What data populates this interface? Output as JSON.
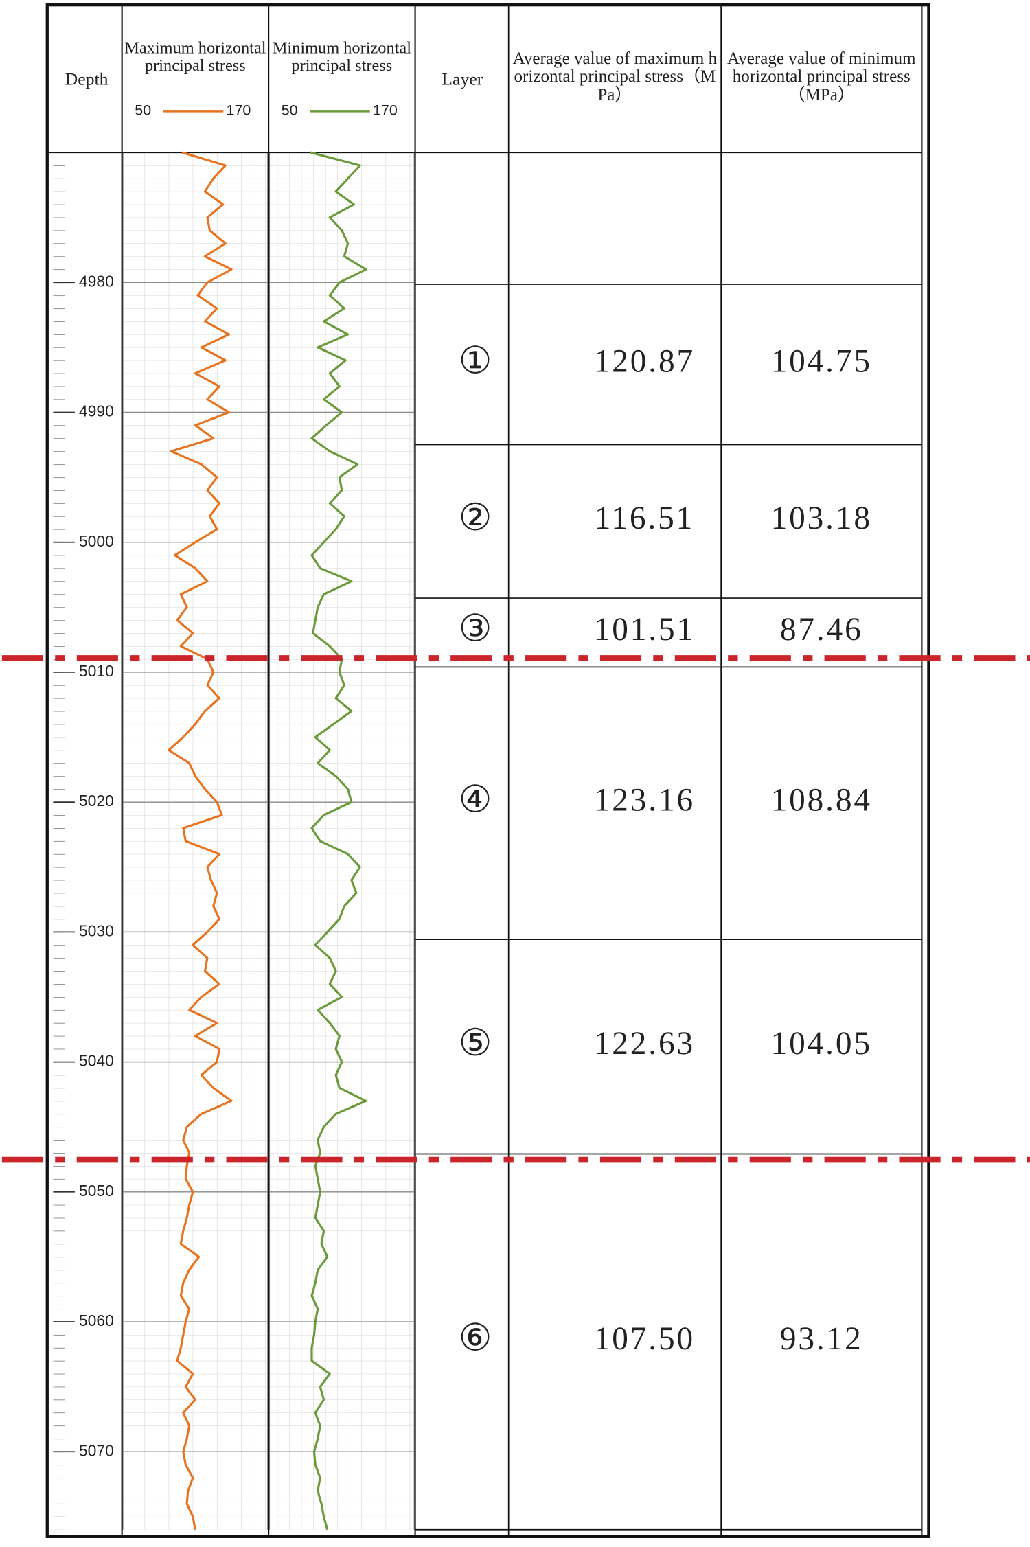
{
  "chart_data": [
    {
      "type": "line",
      "title": "Maximum horizontal principal stress",
      "ylabel": "Depth",
      "x": [
        4970,
        4971,
        4972,
        4973,
        4974,
        4975,
        4976,
        4977,
        4978,
        4979,
        4980,
        4981,
        4982,
        4983,
        4984,
        4985,
        4986,
        4987,
        4988,
        4989,
        4990,
        4991,
        4992,
        4993,
        4994,
        4995,
        4996,
        4997,
        4998,
        4999,
        5000,
        5001,
        5002,
        5003,
        5004,
        5005,
        5006,
        5007,
        5008,
        5009,
        5010,
        5011,
        5012,
        5013,
        5014,
        5015,
        5016,
        5017,
        5018,
        5019,
        5020,
        5021,
        5022,
        5023,
        5024,
        5025,
        5026,
        5027,
        5028,
        5029,
        5030,
        5031,
        5032,
        5033,
        5034,
        5035,
        5036,
        5037,
        5038,
        5039,
        5040,
        5041,
        5042,
        5043,
        5044,
        5045,
        5046,
        5047,
        5048,
        5049,
        5050,
        5051,
        5052,
        5053,
        5054,
        5055,
        5056,
        5057,
        5058,
        5059,
        5060,
        5061,
        5062,
        5063,
        5064,
        5065,
        5066,
        5067,
        5068,
        5069,
        5070,
        5071,
        5072,
        5073,
        5074,
        5075,
        5076
      ],
      "series": [
        {
          "color": "#e8731f",
          "values": [
            99,
            135,
            125,
            118,
            133,
            120,
            122,
            135,
            118,
            140,
            120,
            112,
            128,
            118,
            138,
            115,
            135,
            110,
            130,
            120,
            138,
            110,
            125,
            90,
            115,
            128,
            120,
            130,
            122,
            128,
            110,
            93,
            110,
            120,
            98,
            103,
            95,
            108,
            98,
            120,
            125,
            120,
            130,
            118,
            110,
            100,
            88,
            105,
            110,
            118,
            128,
            132,
            100,
            102,
            130,
            120,
            123,
            128,
            125,
            130,
            120,
            108,
            120,
            118,
            130,
            115,
            105,
            128,
            110,
            130,
            128,
            115,
            125,
            140,
            115,
            103,
            100,
            105,
            103,
            102,
            108,
            105,
            103,
            100,
            98,
            113,
            105,
            100,
            98,
            105,
            102,
            100,
            98,
            95,
            108,
            102,
            110,
            100,
            105,
            103,
            100,
            102,
            108,
            104,
            103,
            108,
            110
          ]
        }
      ],
      "xlim": [
        50,
        170
      ],
      "xticks": [
        50,
        170
      ],
      "ylim": [
        4970,
        5076
      ],
      "yticks": [
        4980,
        4990,
        5000,
        5010,
        5020,
        5030,
        5040,
        5050,
        5060,
        5070
      ],
      "grid": true
    },
    {
      "type": "line",
      "title": "Minimum horizontal principal stress",
      "x": [
        4970,
        4971,
        4972,
        4973,
        4974,
        4975,
        4976,
        4977,
        4978,
        4979,
        4980,
        4981,
        4982,
        4983,
        4984,
        4985,
        4986,
        4987,
        4988,
        4989,
        4990,
        4991,
        4992,
        4993,
        4994,
        4995,
        4996,
        4997,
        4998,
        4999,
        5000,
        5001,
        5002,
        5003,
        5004,
        5005,
        5006,
        5007,
        5008,
        5009,
        5010,
        5011,
        5012,
        5013,
        5014,
        5015,
        5016,
        5017,
        5018,
        5019,
        5020,
        5021,
        5022,
        5023,
        5024,
        5025,
        5026,
        5027,
        5028,
        5029,
        5030,
        5031,
        5032,
        5033,
        5034,
        5035,
        5036,
        5037,
        5038,
        5039,
        5040,
        5041,
        5042,
        5043,
        5044,
        5045,
        5046,
        5047,
        5048,
        5049,
        5050,
        5051,
        5052,
        5053,
        5054,
        5055,
        5056,
        5057,
        5058,
        5059,
        5060,
        5061,
        5062,
        5063,
        5064,
        5065,
        5066,
        5067,
        5068,
        5069,
        5070,
        5071,
        5072,
        5073,
        5074,
        5075,
        5076
      ],
      "series": [
        {
          "color": "#6a9a3a",
          "values": [
            84,
            125,
            115,
            105,
            120,
            100,
            110,
            115,
            112,
            130,
            108,
            100,
            112,
            95,
            115,
            90,
            113,
            100,
            108,
            95,
            110,
            97,
            85,
            100,
            123,
            108,
            110,
            100,
            112,
            105,
            95,
            85,
            92,
            118,
            95,
            90,
            88,
            86,
            100,
            110,
            108,
            112,
            105,
            118,
            103,
            88,
            100,
            90,
            105,
            115,
            118,
            95,
            85,
            92,
            115,
            125,
            118,
            122,
            112,
            108,
            98,
            88,
            100,
            105,
            100,
            110,
            90,
            100,
            108,
            105,
            110,
            105,
            108,
            130,
            105,
            95,
            90,
            92,
            88,
            90,
            92,
            90,
            88,
            95,
            93,
            98,
            90,
            88,
            85,
            90,
            88,
            87,
            85,
            85,
            100,
            92,
            95,
            88,
            92,
            90,
            87,
            88,
            92,
            90,
            93,
            95,
            98
          ]
        }
      ],
      "xlim": [
        50,
        170
      ],
      "xticks": [
        50,
        170
      ],
      "ylim": [
        4970,
        5076
      ],
      "grid": true
    }
  ],
  "table": {
    "header": [
      "Layer",
      "Average value of maximum horizontal principal stress（MPa）",
      "Average value of minimum horizontal principal stress（MPa）"
    ],
    "rows": [
      [
        "①",
        "120.87",
        "104.75"
      ],
      [
        "②",
        "116.51",
        "103.18"
      ],
      [
        "③",
        "101.51",
        "87.46"
      ],
      [
        "④",
        "123.16",
        "108.84"
      ],
      [
        "⑤",
        "122.63",
        "104.05"
      ],
      [
        "⑥",
        "107.50",
        "93.12"
      ]
    ]
  }
}
